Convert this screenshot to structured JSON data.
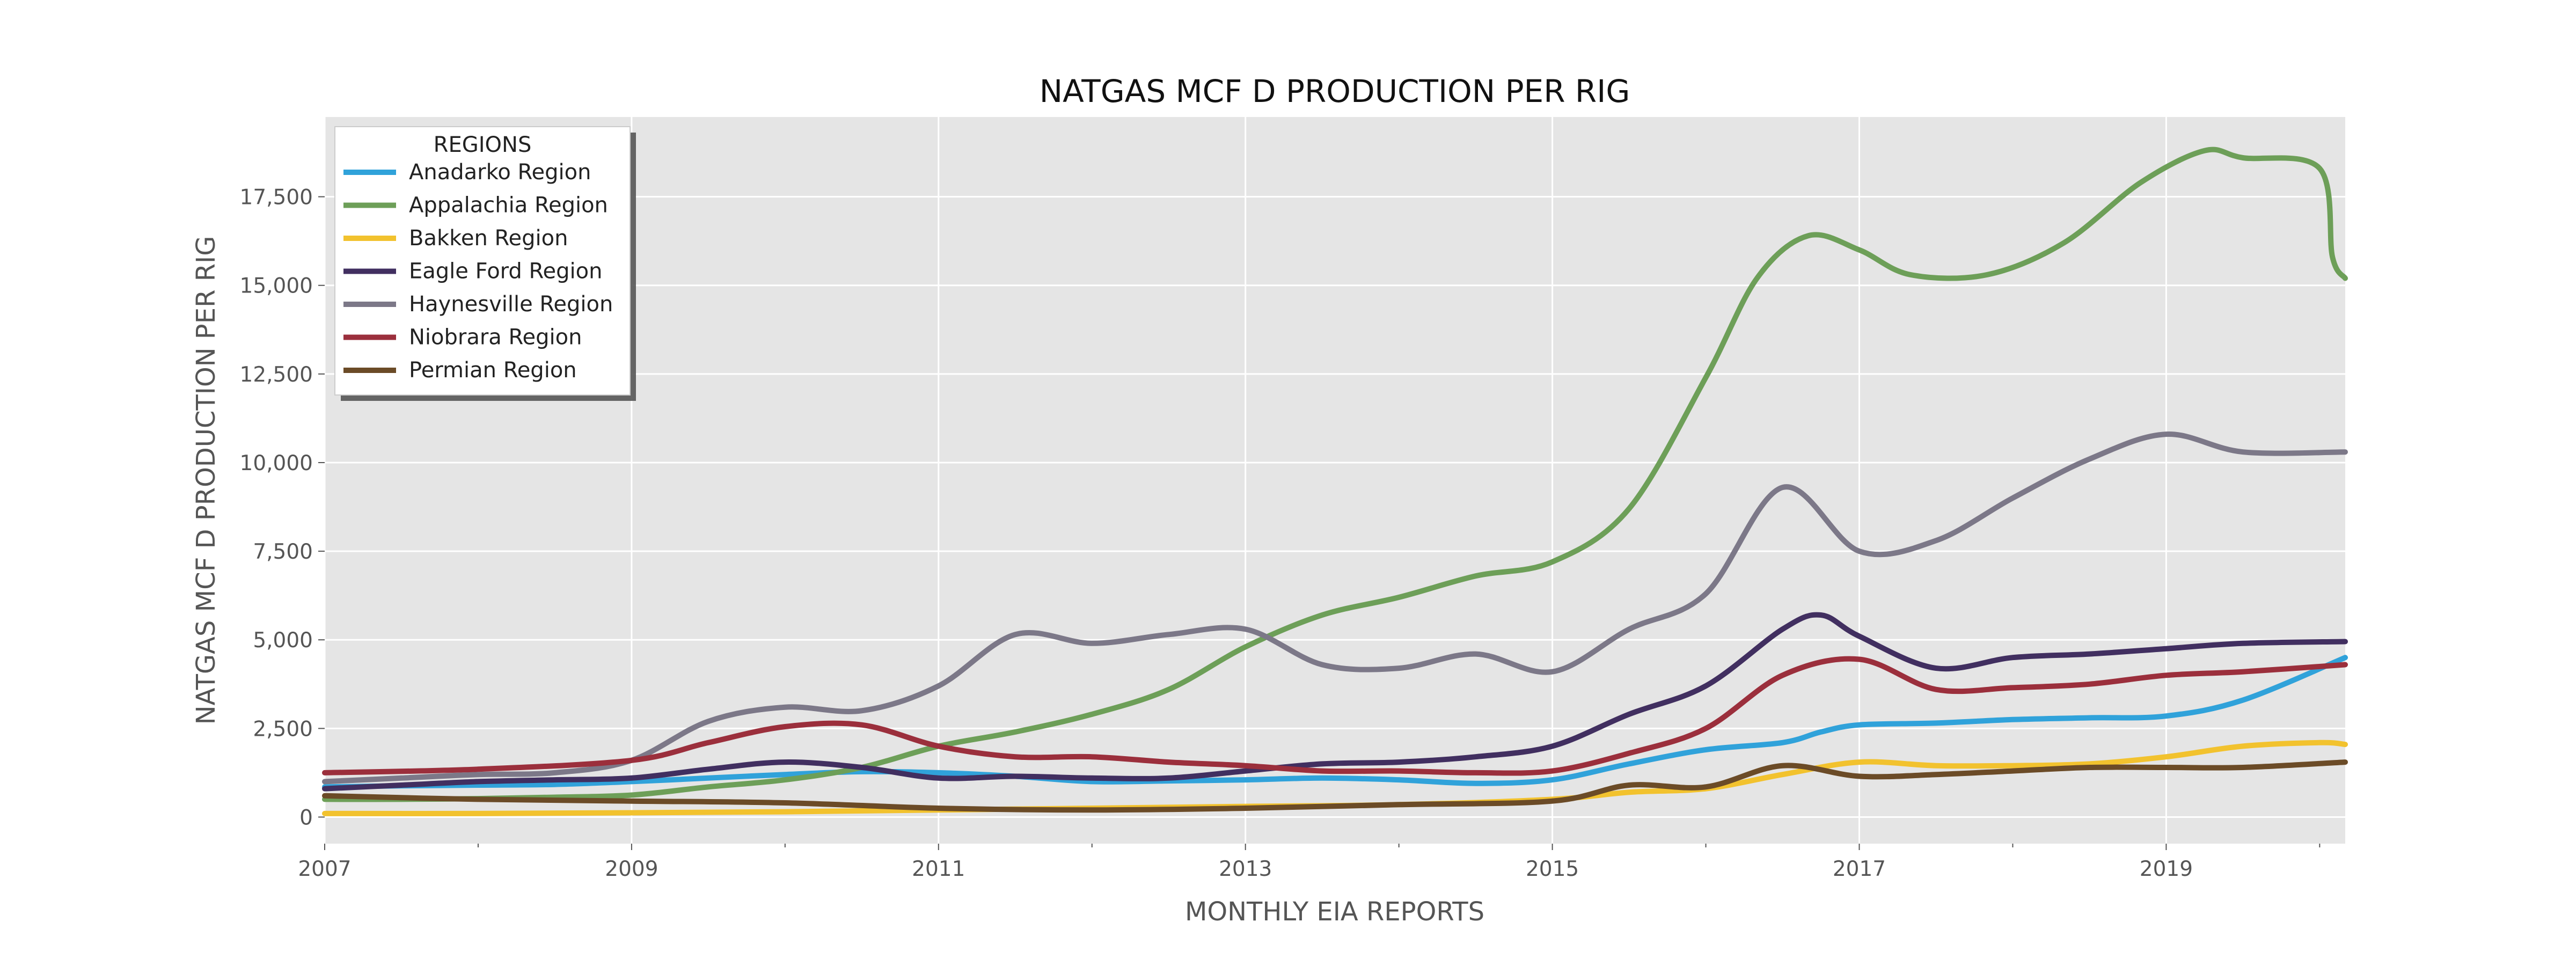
{
  "chart_data": {
    "type": "line",
    "title": "NATGAS MCF D PRODUCTION PER RIG",
    "xlabel": "MONTHLY EIA REPORTS",
    "ylabel": "NATGAS MCF D PRODUCTION PER RIG",
    "xlim": [
      "2007-01",
      "2020-03"
    ],
    "ylim": [
      -750,
      19750
    ],
    "x_ticks": [
      2007,
      2009,
      2011,
      2013,
      2015,
      2017,
      2019
    ],
    "x_tick_labels": [
      "2007",
      "2009",
      "2011",
      "2013",
      "2015",
      "2017",
      "2019"
    ],
    "y_ticks": [
      0,
      2500,
      5000,
      7500,
      10000,
      12500,
      15000,
      17500
    ],
    "y_tick_labels": [
      "0",
      "2,500",
      "5,000",
      "7,500",
      "10,000",
      "12,500",
      "15,000",
      "17,500"
    ],
    "grid": true,
    "background": "#e5e5e5",
    "legend": {
      "title": "REGIONS",
      "placement": "top-left"
    },
    "series": [
      {
        "name": "Anadarko Region",
        "color": "#30a2da",
        "points": [
          [
            "2007-01",
            850
          ],
          [
            "2007-07",
            880
          ],
          [
            "2008-01",
            900
          ],
          [
            "2008-07",
            920
          ],
          [
            "2009-01",
            1000
          ],
          [
            "2009-07",
            1100
          ],
          [
            "2010-01",
            1200
          ],
          [
            "2010-07",
            1280
          ],
          [
            "2011-01",
            1250
          ],
          [
            "2011-07",
            1150
          ],
          [
            "2012-01",
            1000
          ],
          [
            "2012-07",
            1020
          ],
          [
            "2013-01",
            1050
          ],
          [
            "2013-07",
            1100
          ],
          [
            "2014-01",
            1050
          ],
          [
            "2014-07",
            950
          ],
          [
            "2015-01",
            1050
          ],
          [
            "2015-07",
            1500
          ],
          [
            "2016-01",
            1900
          ],
          [
            "2016-07",
            2100
          ],
          [
            "2016-10",
            2400
          ],
          [
            "2017-01",
            2600
          ],
          [
            "2017-07",
            2650
          ],
          [
            "2018-01",
            2750
          ],
          [
            "2018-07",
            2800
          ],
          [
            "2019-01",
            2850
          ],
          [
            "2019-07",
            3300
          ],
          [
            "2020-03",
            4500
          ]
        ]
      },
      {
        "name": "Appalachia Region",
        "color": "#6d9f58",
        "points": [
          [
            "2007-01",
            500
          ],
          [
            "2007-07",
            500
          ],
          [
            "2008-01",
            520
          ],
          [
            "2008-07",
            560
          ],
          [
            "2009-01",
            620
          ],
          [
            "2009-07",
            850
          ],
          [
            "2010-01",
            1050
          ],
          [
            "2010-07",
            1400
          ],
          [
            "2011-01",
            2000
          ],
          [
            "2011-07",
            2400
          ],
          [
            "2012-01",
            2900
          ],
          [
            "2012-07",
            3600
          ],
          [
            "2013-01",
            4800
          ],
          [
            "2013-07",
            5700
          ],
          [
            "2014-01",
            6200
          ],
          [
            "2014-07",
            6800
          ],
          [
            "2015-01",
            7200
          ],
          [
            "2015-07",
            8700
          ],
          [
            "2016-01",
            12400
          ],
          [
            "2016-05",
            15200
          ],
          [
            "2016-09",
            16400
          ],
          [
            "2017-01",
            16000
          ],
          [
            "2017-05",
            15300
          ],
          [
            "2017-11",
            15300
          ],
          [
            "2018-05",
            16200
          ],
          [
            "2018-11",
            17900
          ],
          [
            "2019-04",
            18800
          ],
          [
            "2019-07",
            18600
          ],
          [
            "2020-01",
            18300
          ],
          [
            "2020-02",
            15800
          ],
          [
            "2020-03",
            15200
          ]
        ]
      },
      {
        "name": "Bakken Region",
        "color": "#f2c22e",
        "points": [
          [
            "2007-01",
            100
          ],
          [
            "2008-01",
            100
          ],
          [
            "2009-01",
            120
          ],
          [
            "2010-01",
            150
          ],
          [
            "2011-01",
            200
          ],
          [
            "2012-01",
            250
          ],
          [
            "2013-01",
            300
          ],
          [
            "2014-01",
            350
          ],
          [
            "2015-01",
            500
          ],
          [
            "2015-07",
            700
          ],
          [
            "2016-01",
            800
          ],
          [
            "2016-07",
            1200
          ],
          [
            "2017-01",
            1550
          ],
          [
            "2017-07",
            1450
          ],
          [
            "2018-01",
            1450
          ],
          [
            "2018-07",
            1500
          ],
          [
            "2019-01",
            1700
          ],
          [
            "2019-07",
            2000
          ],
          [
            "2020-01",
            2100
          ],
          [
            "2020-03",
            2050
          ]
        ]
      },
      {
        "name": "Eagle Ford Region",
        "color": "#412f60",
        "points": [
          [
            "2007-01",
            800
          ],
          [
            "2007-07",
            900
          ],
          [
            "2008-01",
            1000
          ],
          [
            "2008-07",
            1050
          ],
          [
            "2009-01",
            1100
          ],
          [
            "2009-07",
            1350
          ],
          [
            "2010-01",
            1550
          ],
          [
            "2010-07",
            1400
          ],
          [
            "2011-01",
            1100
          ],
          [
            "2011-07",
            1150
          ],
          [
            "2012-01",
            1100
          ],
          [
            "2012-07",
            1100
          ],
          [
            "2013-01",
            1300
          ],
          [
            "2013-07",
            1500
          ],
          [
            "2014-01",
            1550
          ],
          [
            "2014-07",
            1700
          ],
          [
            "2015-01",
            2000
          ],
          [
            "2015-07",
            2900
          ],
          [
            "2016-01",
            3700
          ],
          [
            "2016-07",
            5300
          ],
          [
            "2016-10",
            5700
          ],
          [
            "2017-01",
            5100
          ],
          [
            "2017-07",
            4200
          ],
          [
            "2018-01",
            4500
          ],
          [
            "2018-07",
            4600
          ],
          [
            "2019-01",
            4750
          ],
          [
            "2019-07",
            4900
          ],
          [
            "2020-03",
            4950
          ]
        ]
      },
      {
        "name": "Haynesville Region",
        "color": "#7c7888",
        "points": [
          [
            "2007-01",
            1000
          ],
          [
            "2007-07",
            1100
          ],
          [
            "2008-01",
            1200
          ],
          [
            "2008-07",
            1250
          ],
          [
            "2009-01",
            1600
          ],
          [
            "2009-07",
            2700
          ],
          [
            "2010-01",
            3100
          ],
          [
            "2010-07",
            3000
          ],
          [
            "2011-01",
            3700
          ],
          [
            "2011-07",
            5150
          ],
          [
            "2012-01",
            4900
          ],
          [
            "2012-07",
            5150
          ],
          [
            "2013-01",
            5300
          ],
          [
            "2013-07",
            4300
          ],
          [
            "2014-01",
            4200
          ],
          [
            "2014-07",
            4600
          ],
          [
            "2015-01",
            4100
          ],
          [
            "2015-07",
            5300
          ],
          [
            "2016-01",
            6300
          ],
          [
            "2016-07",
            9300
          ],
          [
            "2017-01",
            7500
          ],
          [
            "2017-07",
            7800
          ],
          [
            "2018-01",
            9000
          ],
          [
            "2018-07",
            10100
          ],
          [
            "2019-01",
            10800
          ],
          [
            "2019-07",
            10300
          ],
          [
            "2020-03",
            10300
          ]
        ]
      },
      {
        "name": "Niobrara Region",
        "color": "#9b2f3c",
        "points": [
          [
            "2007-01",
            1250
          ],
          [
            "2008-01",
            1350
          ],
          [
            "2009-01",
            1600
          ],
          [
            "2009-07",
            2100
          ],
          [
            "2010-01",
            2550
          ],
          [
            "2010-07",
            2600
          ],
          [
            "2011-01",
            2000
          ],
          [
            "2011-07",
            1700
          ],
          [
            "2012-01",
            1700
          ],
          [
            "2012-07",
            1550
          ],
          [
            "2013-01",
            1450
          ],
          [
            "2013-07",
            1300
          ],
          [
            "2014-01",
            1300
          ],
          [
            "2014-07",
            1250
          ],
          [
            "2015-01",
            1300
          ],
          [
            "2015-07",
            1800
          ],
          [
            "2016-01",
            2500
          ],
          [
            "2016-07",
            4000
          ],
          [
            "2017-01",
            4450
          ],
          [
            "2017-07",
            3600
          ],
          [
            "2018-01",
            3650
          ],
          [
            "2018-07",
            3750
          ],
          [
            "2019-01",
            4000
          ],
          [
            "2019-07",
            4100
          ],
          [
            "2020-03",
            4300
          ]
        ]
      },
      {
        "name": "Permian Region",
        "color": "#6b4b27",
        "points": [
          [
            "2007-01",
            600
          ],
          [
            "2008-01",
            500
          ],
          [
            "2009-01",
            450
          ],
          [
            "2010-01",
            400
          ],
          [
            "2011-01",
            250
          ],
          [
            "2012-01",
            200
          ],
          [
            "2013-01",
            250
          ],
          [
            "2014-01",
            350
          ],
          [
            "2015-01",
            450
          ],
          [
            "2015-07",
            900
          ],
          [
            "2016-01",
            850
          ],
          [
            "2016-07",
            1450
          ],
          [
            "2017-01",
            1150
          ],
          [
            "2017-07",
            1200
          ],
          [
            "2018-01",
            1300
          ],
          [
            "2018-07",
            1400
          ],
          [
            "2019-01",
            1400
          ],
          [
            "2019-07",
            1400
          ],
          [
            "2020-03",
            1550
          ]
        ]
      }
    ]
  }
}
